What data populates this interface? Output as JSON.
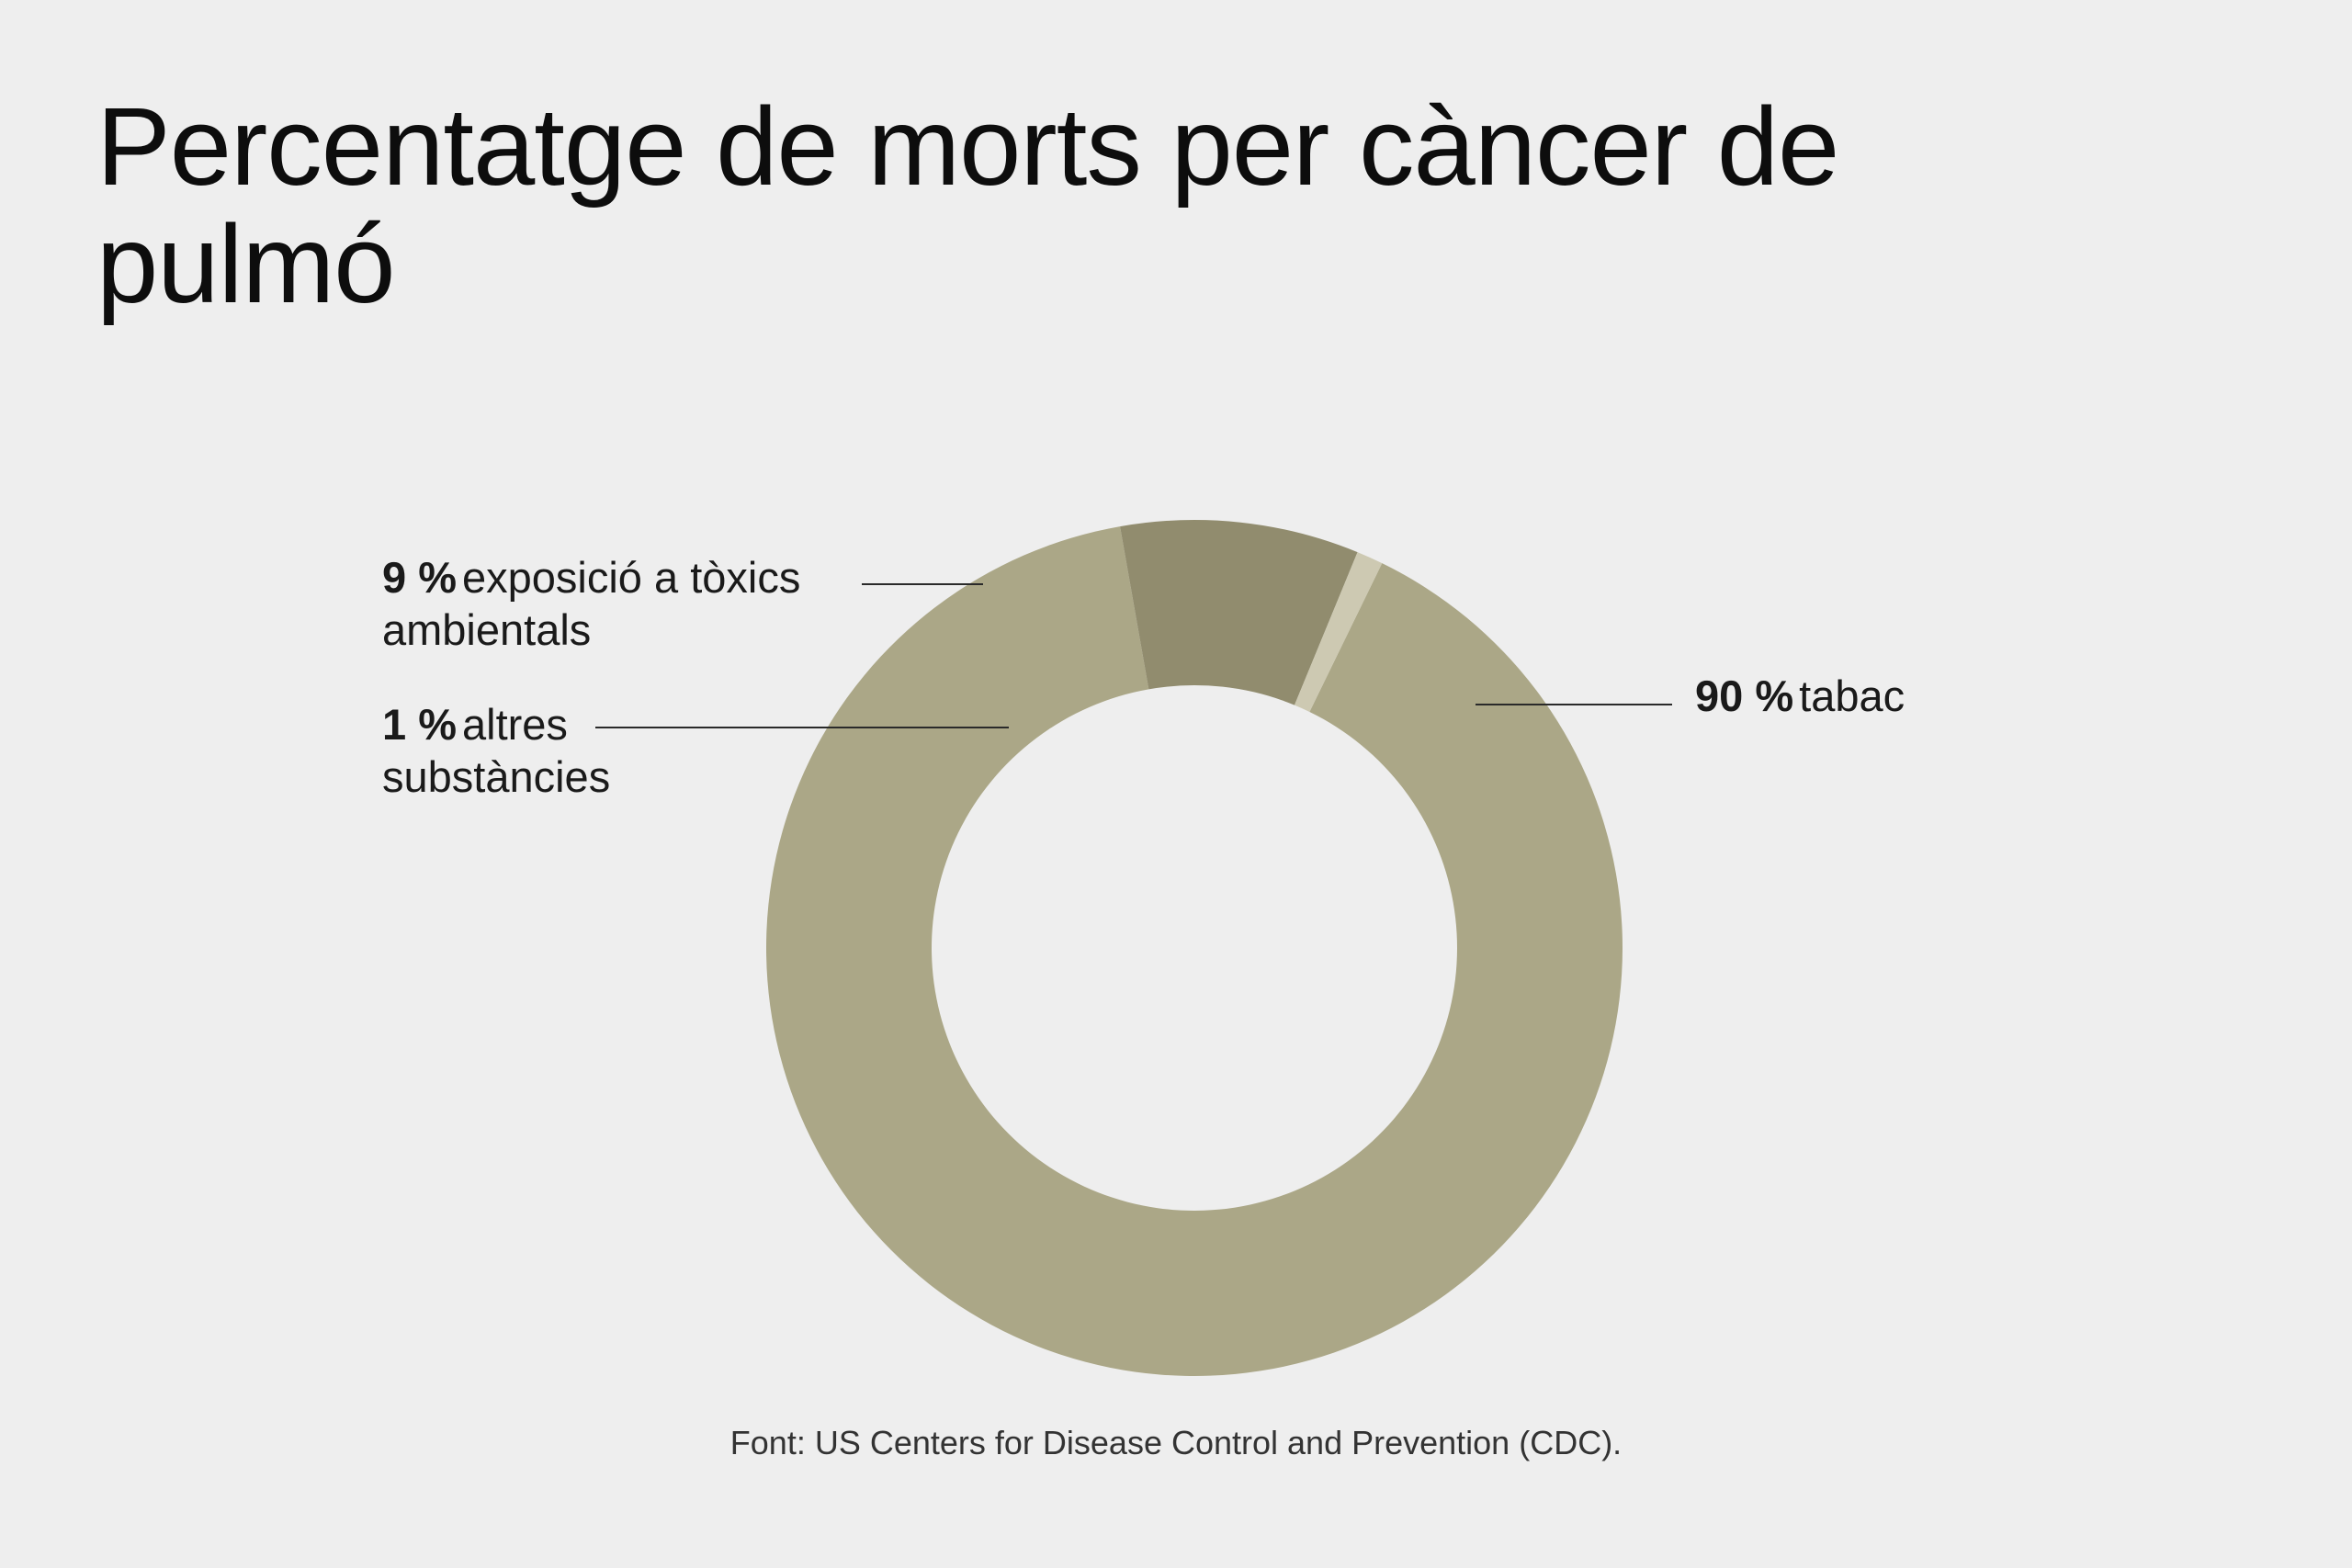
{
  "title": "Percentatge de morts per càncer de pulmó",
  "source": "Font: US Centers for Disease Control and Prevention (CDC).",
  "chart_data": {
    "type": "pie",
    "variant": "donut",
    "title": "Percentatge de morts per càncer de pulmó",
    "slices": [
      {
        "name": "tabac",
        "label_line1": "tabac",
        "label_line2": "",
        "pct_label": "90 %",
        "value": 90,
        "color": "#aba787"
      },
      {
        "name": "exposició a tòxics ambientals",
        "label_line1": "exposició a tòxics",
        "label_line2": "ambientals",
        "pct_label": "9 %",
        "value": 9,
        "color": "#918c6e"
      },
      {
        "name": "altres substàncies",
        "label_line1": "altres",
        "label_line2": "substàncies",
        "pct_label": "1 %",
        "value": 1,
        "color": "#cdc9b2"
      }
    ]
  }
}
